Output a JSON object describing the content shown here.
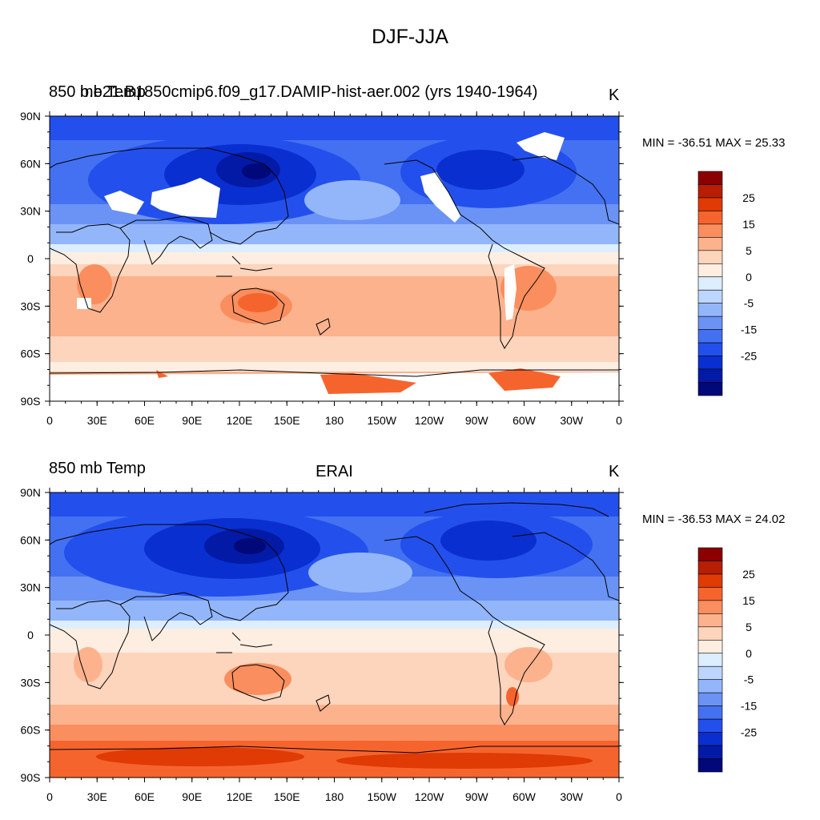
{
  "figure": {
    "title": "DJF-JJA"
  },
  "panels": [
    {
      "variable_label": "850 mb Temp",
      "case_label": "b.e21.B1850cmip6.f09_g17.DAMIP-hist-aer.002 (yrs 1940-1964)",
      "units": "K",
      "min_max_text": "MIN = -36.51 MAX =  25.33",
      "min": -36.51,
      "max": 25.33
    },
    {
      "variable_label": "850 mb Temp",
      "case_label": "ERAI",
      "units": "K",
      "min_max_text": "MIN = -36.53 MAX =  24.02",
      "min": -36.53,
      "max": 24.02
    }
  ],
  "axes": {
    "lat_ticks": [
      "90N",
      "60N",
      "30N",
      "0",
      "30S",
      "60S",
      "90S"
    ],
    "lon_ticks": [
      "0",
      "30E",
      "60E",
      "90E",
      "120E",
      "150E",
      "180",
      "150W",
      "120W",
      "90W",
      "60W",
      "30W",
      "0"
    ]
  },
  "colorbar": {
    "labels": [
      "25",
      "15",
      "5",
      "0",
      "-5",
      "-15",
      "-25"
    ],
    "colors": [
      "#8b0000",
      "#b81e04",
      "#e03a05",
      "#f6642e",
      "#fa8e5e",
      "#fcb28d",
      "#fdd4bc",
      "#feeee2",
      "#dceeff",
      "#bcd6ff",
      "#93b6fb",
      "#6a93f5",
      "#4371f1",
      "#2350ec",
      "#0a2fd0",
      "#021aa6",
      "#00087a"
    ]
  },
  "map_colors": {
    "land_line": "#000000",
    "missing": "#ffffff"
  }
}
